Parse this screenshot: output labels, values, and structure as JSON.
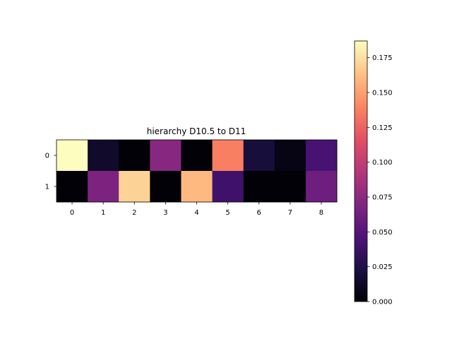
{
  "chart_data": {
    "type": "heatmap",
    "title": "hierarchy D10.5 to D11",
    "x_categories": [
      "0",
      "1",
      "2",
      "3",
      "4",
      "5",
      "6",
      "7",
      "8"
    ],
    "y_categories": [
      "0",
      "1"
    ],
    "values": [
      [
        0.187,
        0.014,
        0.001,
        0.073,
        0.001,
        0.137,
        0.02,
        0.006,
        0.043
      ],
      [
        0.001,
        0.068,
        0.17,
        0.001,
        0.16,
        0.04,
        0.001,
        0.001,
        0.061
      ]
    ],
    "colormap": "magma",
    "colorbar": {
      "range": [
        0.0,
        0.187
      ],
      "ticks": [
        0.0,
        0.025,
        0.05,
        0.075,
        0.1,
        0.125,
        0.15,
        0.175
      ],
      "tick_labels": [
        "0.000",
        "0.025",
        "0.050",
        "0.075",
        "0.100",
        "0.125",
        "0.150",
        "0.175"
      ]
    }
  }
}
